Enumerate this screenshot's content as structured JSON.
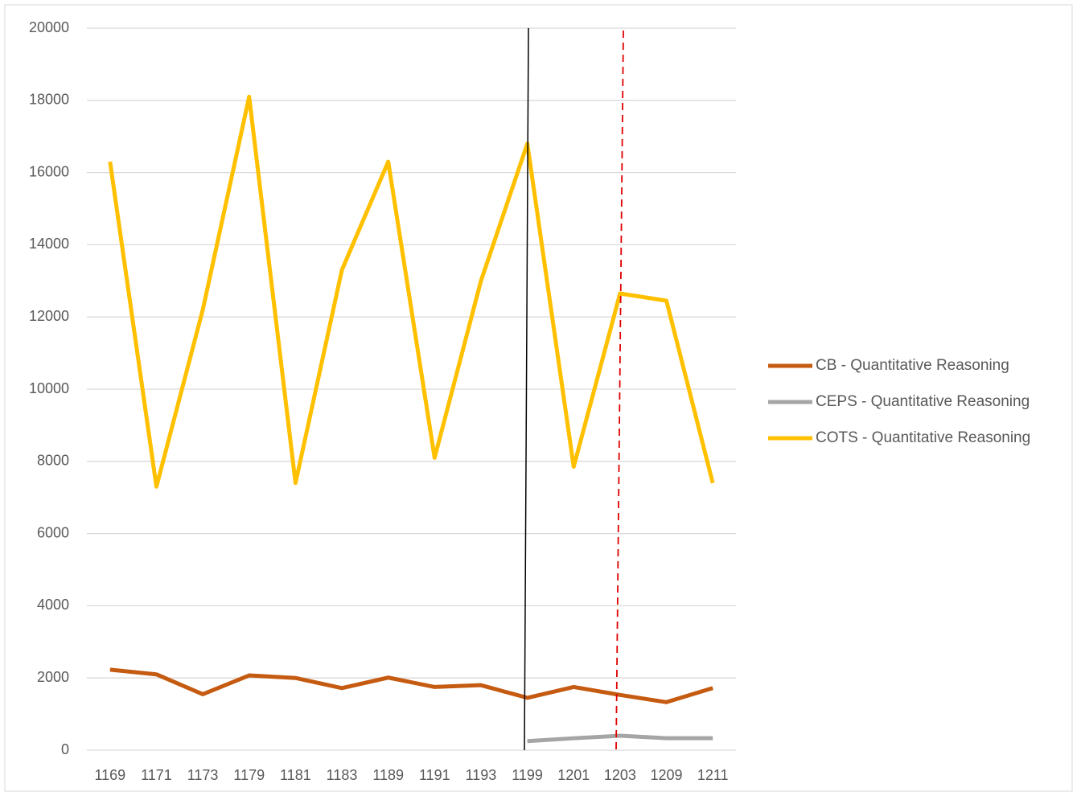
{
  "chart_data": {
    "type": "line",
    "categories": [
      "1169",
      "1171",
      "1173",
      "1179",
      "1181",
      "1183",
      "1189",
      "1191",
      "1193",
      "1199",
      "1201",
      "1203",
      "1209",
      "1211"
    ],
    "series": [
      {
        "name": "CB - Quantitative Reasoning",
        "color": "#c55a11",
        "values": [
          2230,
          2100,
          1550,
          2070,
          2000,
          1720,
          2010,
          1750,
          1800,
          1450,
          1750,
          1530,
          1330,
          1720
        ]
      },
      {
        "name": "CEPS - Quantitative Reasoning",
        "color": "#a5a5a5",
        "values": [
          null,
          null,
          null,
          null,
          null,
          null,
          null,
          null,
          null,
          250,
          330,
          400,
          330,
          330
        ]
      },
      {
        "name": "COTS - Quantitative Reasoning",
        "color": "#ffc000",
        "values": [
          16300,
          7300,
          12200,
          18100,
          7400,
          13300,
          16300,
          8100,
          13000,
          16800,
          7850,
          12650,
          12450,
          7400
        ]
      }
    ],
    "ylim": [
      0,
      20000
    ],
    "yticks": [
      0,
      2000,
      4000,
      6000,
      8000,
      10000,
      12000,
      14000,
      16000,
      18000,
      20000
    ],
    "grid": true,
    "legend": "right"
  }
}
